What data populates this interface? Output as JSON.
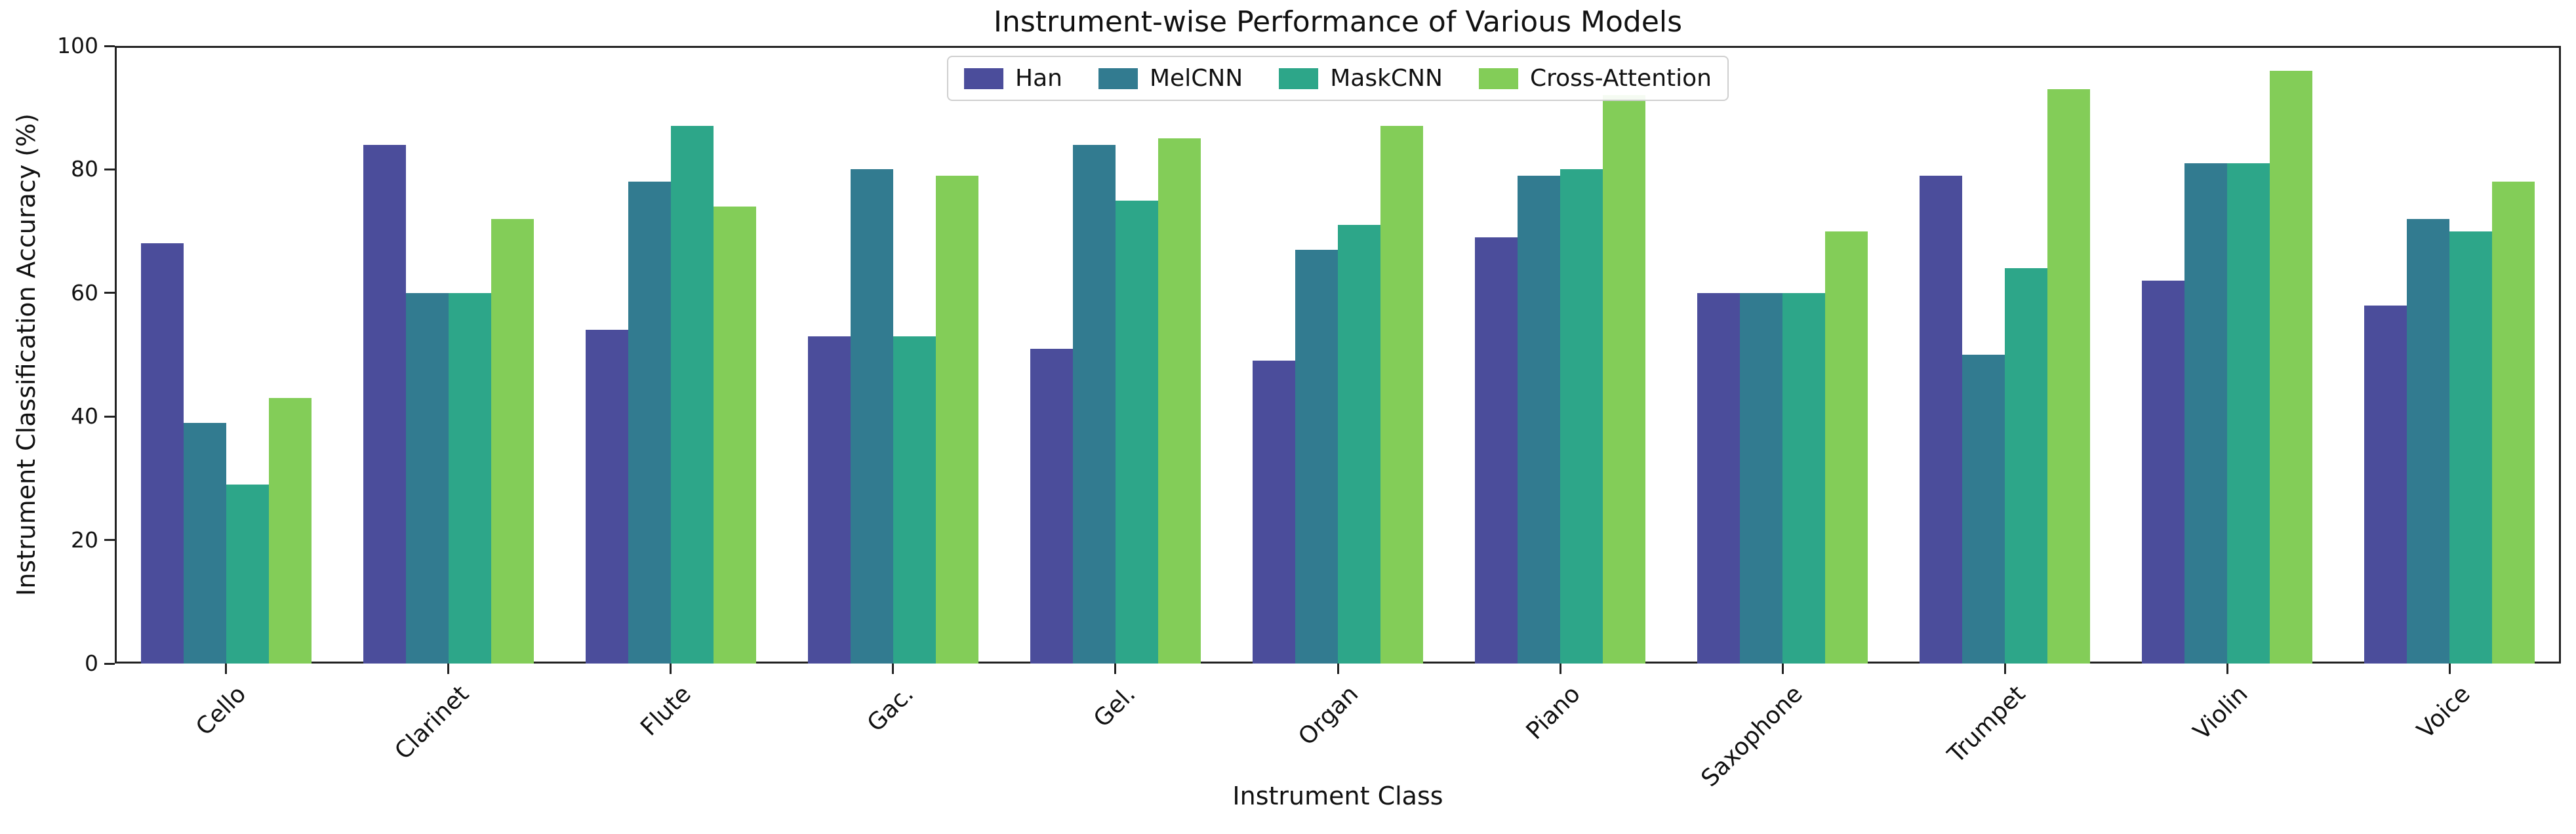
{
  "chart_data": {
    "type": "bar",
    "title": "Instrument-wise Performance of Various Models",
    "xlabel": "Instrument Class",
    "ylabel": "Instrument Classification Accuracy (%)",
    "ylim": [
      0,
      100
    ],
    "yticks": [
      0,
      20,
      40,
      60,
      80,
      100
    ],
    "grid": false,
    "legend_position": "upper center",
    "categories": [
      "Cello",
      "Clarinet",
      "Flute",
      "Gac.",
      "Gel.",
      "Organ",
      "Piano",
      "Saxophone",
      "Trumpet",
      "Violin",
      "Voice"
    ],
    "series": [
      {
        "name": "Han",
        "color": "#4b4d9b",
        "values": [
          68,
          84,
          54,
          53,
          51,
          49,
          69,
          60,
          79,
          62,
          58
        ]
      },
      {
        "name": "MelCNN",
        "color": "#327b90",
        "values": [
          39,
          60,
          78,
          80,
          84,
          67,
          79,
          60,
          50,
          81,
          72
        ]
      },
      {
        "name": "MaskCNN",
        "color": "#2da689",
        "values": [
          29,
          60,
          87,
          53,
          75,
          71,
          80,
          60,
          64,
          81,
          70
        ]
      },
      {
        "name": "Cross-Attention",
        "color": "#83cd58",
        "values": [
          43,
          72,
          74,
          79,
          85,
          87,
          92,
          70,
          93,
          96,
          78
        ]
      }
    ]
  },
  "colors": {
    "spine": "#222222",
    "text": "#111111",
    "legend_border": "#cfcfcf",
    "background": "#ffffff"
  }
}
